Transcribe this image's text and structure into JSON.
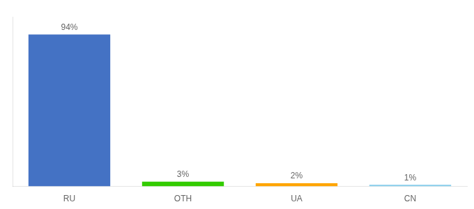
{
  "chart_data": {
    "type": "bar",
    "categories": [
      "RU",
      "OTH",
      "UA",
      "CN"
    ],
    "values": [
      94,
      3,
      2,
      1
    ],
    "value_labels": [
      "94%",
      "3%",
      "2%",
      "1%"
    ],
    "data_labels": true,
    "colors": [
      "#4472C4",
      "#33CC00",
      "#FFA500",
      "#87CEEB"
    ],
    "ylim": [
      0,
      105
    ],
    "tick_labels": "x",
    "grid": false
  }
}
